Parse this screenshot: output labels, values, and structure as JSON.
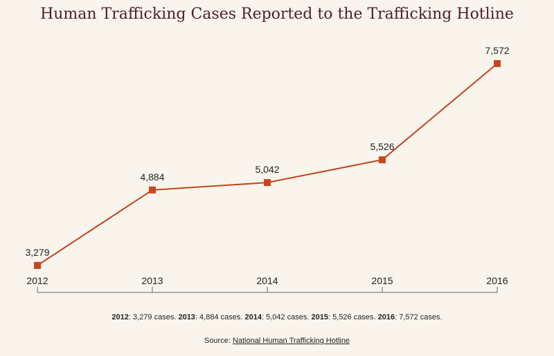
{
  "chart_data": {
    "type": "line",
    "title": "Human Trafficking Cases Reported to the Trafficking Hotline",
    "categories": [
      "2012",
      "2013",
      "2014",
      "2015",
      "2016"
    ],
    "series": [
      {
        "values": [
          3279,
          4884,
          5042,
          5526,
          7572
        ]
      }
    ],
    "data_labels": [
      "3,279",
      "4,884",
      "5,042",
      "5,526",
      "7,572"
    ],
    "xlabel": "",
    "ylabel": "",
    "grid": false,
    "colors": {
      "line": "#c0431b",
      "marker": "#c8461e",
      "axis": "#666666",
      "title": "#4a1f2a"
    }
  },
  "summary": [
    {
      "year": "2012",
      "text": ": 3,279 cases."
    },
    {
      "year": "2013",
      "text": ": 4,884 cases."
    },
    {
      "year": "2014",
      "text": ": 5,042 cases."
    },
    {
      "year": "2015",
      "text": ": 5,526 cases."
    },
    {
      "year": "2016",
      "text": ": 7,572 cases."
    }
  ],
  "source": {
    "prefix": "Source: ",
    "link_text": "National Human Trafficking Hotline"
  }
}
